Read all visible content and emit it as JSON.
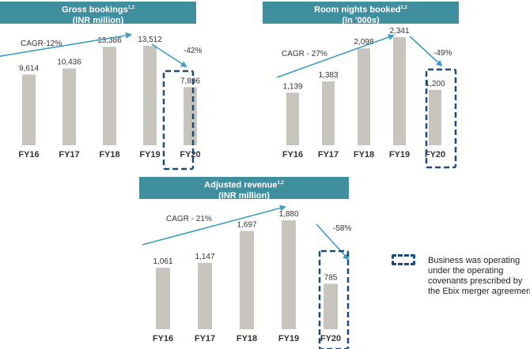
{
  "colors": {
    "bar": "#c8c5be",
    "header": "#3f8f9e",
    "arrow": "#3e9bc3",
    "highlight": "#1b4a7a"
  },
  "chart_data": [
    {
      "type": "bar",
      "title": "Gross bookings",
      "title_sup": "1,2",
      "subtitle": "(INR million)",
      "categories": [
        "FY16",
        "FY17",
        "FY18",
        "FY19",
        "FY20"
      ],
      "values": [
        9614,
        10436,
        13386,
        13512,
        7896
      ],
      "value_labels": [
        "9,614",
        "10,436",
        "13,386",
        "13,512",
        "7,896"
      ],
      "ylim": [
        0,
        16000
      ],
      "cagr_label": "CAGR-12%",
      "decline_label": "-42%",
      "highlighted_category": "FY20"
    },
    {
      "type": "bar",
      "title": "Room nights booked",
      "title_sup": "1,2",
      "subtitle": "(In '000s)",
      "categories": [
        "FY16",
        "FY17",
        "FY18",
        "FY19",
        "FY20"
      ],
      "values": [
        1139,
        1383,
        2098,
        2341,
        1200
      ],
      "value_labels": [
        "1,139",
        "1,383",
        "2,098",
        "2,341",
        "1,200"
      ],
      "ylim": [
        0,
        2750
      ],
      "cagr_label": "CAGR - 27%",
      "decline_label": "-49%",
      "highlighted_category": "FY20"
    },
    {
      "type": "bar",
      "title": "Adjusted revenue",
      "title_sup": "1,2",
      "subtitle": "(INR million)",
      "categories": [
        "FY16",
        "FY17",
        "FY18",
        "FY19",
        "FY20"
      ],
      "values": [
        1061,
        1147,
        1697,
        1880,
        785
      ],
      "value_labels": [
        "1,061",
        "1,147",
        "1,697",
        "1,880",
        "785"
      ],
      "ylim": [
        0,
        2250
      ],
      "cagr_label": "CAGR - 21%",
      "decline_label": "-58%",
      "highlighted_category": "FY20"
    }
  ],
  "legend": {
    "text": "Business was operating under the operating covenants prescribed by the Ebix merger agreement"
  }
}
